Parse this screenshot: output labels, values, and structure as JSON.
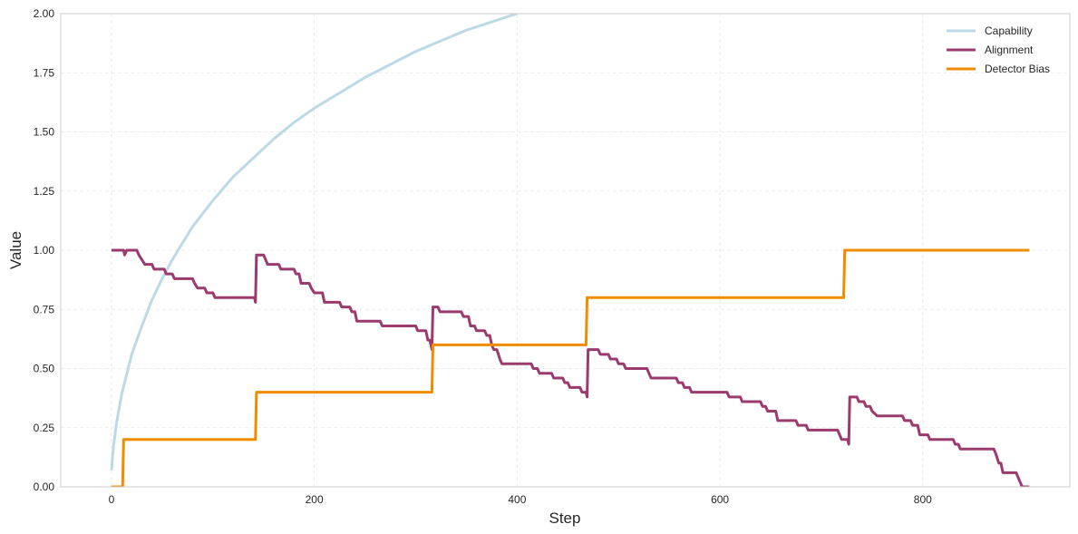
{
  "chart_data": {
    "type": "line",
    "title": "",
    "xlabel": "Step",
    "ylabel": "Value",
    "xlim": [
      -50,
      945
    ],
    "ylim": [
      0,
      2.0
    ],
    "x_ticks": [
      0,
      200,
      400,
      600,
      800
    ],
    "y_ticks": [
      0,
      0.25,
      0.5,
      0.75,
      1.0,
      1.25,
      1.5,
      1.75,
      2.0
    ],
    "x_tick_labels": [
      "0",
      "200",
      "400",
      "600",
      "800"
    ],
    "y_tick_labels": [
      "0.00",
      "0.25",
      "0.50",
      "0.75",
      "1.00",
      "1.25",
      "1.50",
      "1.75",
      "2.00"
    ],
    "grid": true,
    "legend_position": "top-right",
    "series": [
      {
        "name": "Capability",
        "color": "#bcd9e6",
        "points": [
          [
            0,
            0.07
          ],
          [
            2,
            0.17
          ],
          [
            5,
            0.27
          ],
          [
            10,
            0.39
          ],
          [
            20,
            0.56
          ],
          [
            30,
            0.68
          ],
          [
            40,
            0.79
          ],
          [
            50,
            0.88
          ],
          [
            60,
            0.96
          ],
          [
            80,
            1.1
          ],
          [
            100,
            1.21
          ],
          [
            120,
            1.31
          ],
          [
            140,
            1.39
          ],
          [
            160,
            1.47
          ],
          [
            180,
            1.54
          ],
          [
            200,
            1.6
          ],
          [
            250,
            1.73
          ],
          [
            300,
            1.84
          ],
          [
            350,
            1.93
          ],
          [
            400,
            2.0
          ]
        ]
      },
      {
        "name": "Alignment",
        "color": "#9b3a6c",
        "points": [
          [
            0,
            1.0
          ],
          [
            12,
            1.0
          ],
          [
            13,
            0.98
          ],
          [
            15,
            1.0
          ],
          [
            25,
            1.0
          ],
          [
            27,
            0.98
          ],
          [
            30,
            0.96
          ],
          [
            33,
            0.94
          ],
          [
            40,
            0.94
          ],
          [
            42,
            0.92
          ],
          [
            52,
            0.92
          ],
          [
            54,
            0.9
          ],
          [
            60,
            0.9
          ],
          [
            62,
            0.88
          ],
          [
            80,
            0.88
          ],
          [
            82,
            0.86
          ],
          [
            85,
            0.84
          ],
          [
            92,
            0.84
          ],
          [
            94,
            0.82
          ],
          [
            100,
            0.82
          ],
          [
            102,
            0.8
          ],
          [
            141,
            0.8
          ],
          [
            142,
            0.78
          ],
          [
            143,
            0.98
          ],
          [
            150,
            0.98
          ],
          [
            152,
            0.96
          ],
          [
            154,
            0.94
          ],
          [
            165,
            0.94
          ],
          [
            167,
            0.92
          ],
          [
            180,
            0.92
          ],
          [
            182,
            0.9
          ],
          [
            185,
            0.9
          ],
          [
            187,
            0.86
          ],
          [
            195,
            0.86
          ],
          [
            197,
            0.84
          ],
          [
            200,
            0.82
          ],
          [
            208,
            0.82
          ],
          [
            210,
            0.78
          ],
          [
            225,
            0.78
          ],
          [
            227,
            0.76
          ],
          [
            235,
            0.76
          ],
          [
            237,
            0.74
          ],
          [
            240,
            0.74
          ],
          [
            242,
            0.7
          ],
          [
            265,
            0.7
          ],
          [
            267,
            0.68
          ],
          [
            300,
            0.68
          ],
          [
            302,
            0.66
          ],
          [
            310,
            0.66
          ],
          [
            312,
            0.62
          ],
          [
            314,
            0.62
          ],
          [
            316,
            0.58
          ],
          [
            317,
            0.76
          ],
          [
            322,
            0.76
          ],
          [
            324,
            0.74
          ],
          [
            345,
            0.74
          ],
          [
            347,
            0.72
          ],
          [
            352,
            0.72
          ],
          [
            354,
            0.68
          ],
          [
            358,
            0.68
          ],
          [
            360,
            0.66
          ],
          [
            368,
            0.66
          ],
          [
            370,
            0.64
          ],
          [
            373,
            0.64
          ],
          [
            375,
            0.6
          ],
          [
            377,
            0.58
          ],
          [
            380,
            0.58
          ],
          [
            383,
            0.54
          ],
          [
            385,
            0.52
          ],
          [
            414,
            0.52
          ],
          [
            416,
            0.5
          ],
          [
            420,
            0.5
          ],
          [
            422,
            0.48
          ],
          [
            434,
            0.48
          ],
          [
            436,
            0.46
          ],
          [
            445,
            0.46
          ],
          [
            447,
            0.44
          ],
          [
            450,
            0.44
          ],
          [
            452,
            0.42
          ],
          [
            462,
            0.42
          ],
          [
            464,
            0.4
          ],
          [
            468,
            0.4
          ],
          [
            469,
            0.38
          ],
          [
            470,
            0.58
          ],
          [
            480,
            0.58
          ],
          [
            482,
            0.56
          ],
          [
            490,
            0.56
          ],
          [
            492,
            0.54
          ],
          [
            498,
            0.54
          ],
          [
            500,
            0.52
          ],
          [
            505,
            0.52
          ],
          [
            507,
            0.5
          ],
          [
            528,
            0.5
          ],
          [
            530,
            0.48
          ],
          [
            532,
            0.46
          ],
          [
            557,
            0.46
          ],
          [
            559,
            0.44
          ],
          [
            563,
            0.44
          ],
          [
            565,
            0.42
          ],
          [
            570,
            0.42
          ],
          [
            572,
            0.4
          ],
          [
            607,
            0.4
          ],
          [
            609,
            0.38
          ],
          [
            620,
            0.38
          ],
          [
            622,
            0.36
          ],
          [
            640,
            0.36
          ],
          [
            642,
            0.34
          ],
          [
            645,
            0.34
          ],
          [
            647,
            0.32
          ],
          [
            655,
            0.32
          ],
          [
            657,
            0.28
          ],
          [
            675,
            0.28
          ],
          [
            677,
            0.26
          ],
          [
            685,
            0.26
          ],
          [
            687,
            0.24
          ],
          [
            700,
            0.24
          ],
          [
            702,
            0.24
          ],
          [
            716,
            0.24
          ],
          [
            718,
            0.22
          ],
          [
            720,
            0.2
          ],
          [
            726,
            0.2
          ],
          [
            727,
            0.18
          ],
          [
            728,
            0.38
          ],
          [
            735,
            0.38
          ],
          [
            737,
            0.36
          ],
          [
            742,
            0.36
          ],
          [
            744,
            0.34
          ],
          [
            748,
            0.34
          ],
          [
            750,
            0.32
          ],
          [
            755,
            0.3
          ],
          [
            780,
            0.3
          ],
          [
            782,
            0.28
          ],
          [
            788,
            0.28
          ],
          [
            790,
            0.26
          ],
          [
            795,
            0.26
          ],
          [
            797,
            0.22
          ],
          [
            805,
            0.22
          ],
          [
            807,
            0.2
          ],
          [
            830,
            0.2
          ],
          [
            832,
            0.18
          ],
          [
            835,
            0.18
          ],
          [
            837,
            0.16
          ],
          [
            870,
            0.16
          ],
          [
            872,
            0.14
          ],
          [
            875,
            0.1
          ],
          [
            877,
            0.1
          ],
          [
            879,
            0.06
          ],
          [
            892,
            0.06
          ],
          [
            894,
            0.04
          ],
          [
            898,
            0.0
          ],
          [
            905,
            0.0
          ]
        ]
      },
      {
        "name": "Detector Bias",
        "color": "#f08c00",
        "points": [
          [
            0,
            0.0
          ],
          [
            11,
            0.0
          ],
          [
            12,
            0.2
          ],
          [
            142,
            0.2
          ],
          [
            143,
            0.4
          ],
          [
            316,
            0.4
          ],
          [
            317,
            0.6
          ],
          [
            468,
            0.6
          ],
          [
            469,
            0.8
          ],
          [
            722,
            0.8
          ],
          [
            723,
            1.0
          ],
          [
            905,
            1.0
          ]
        ]
      }
    ]
  }
}
